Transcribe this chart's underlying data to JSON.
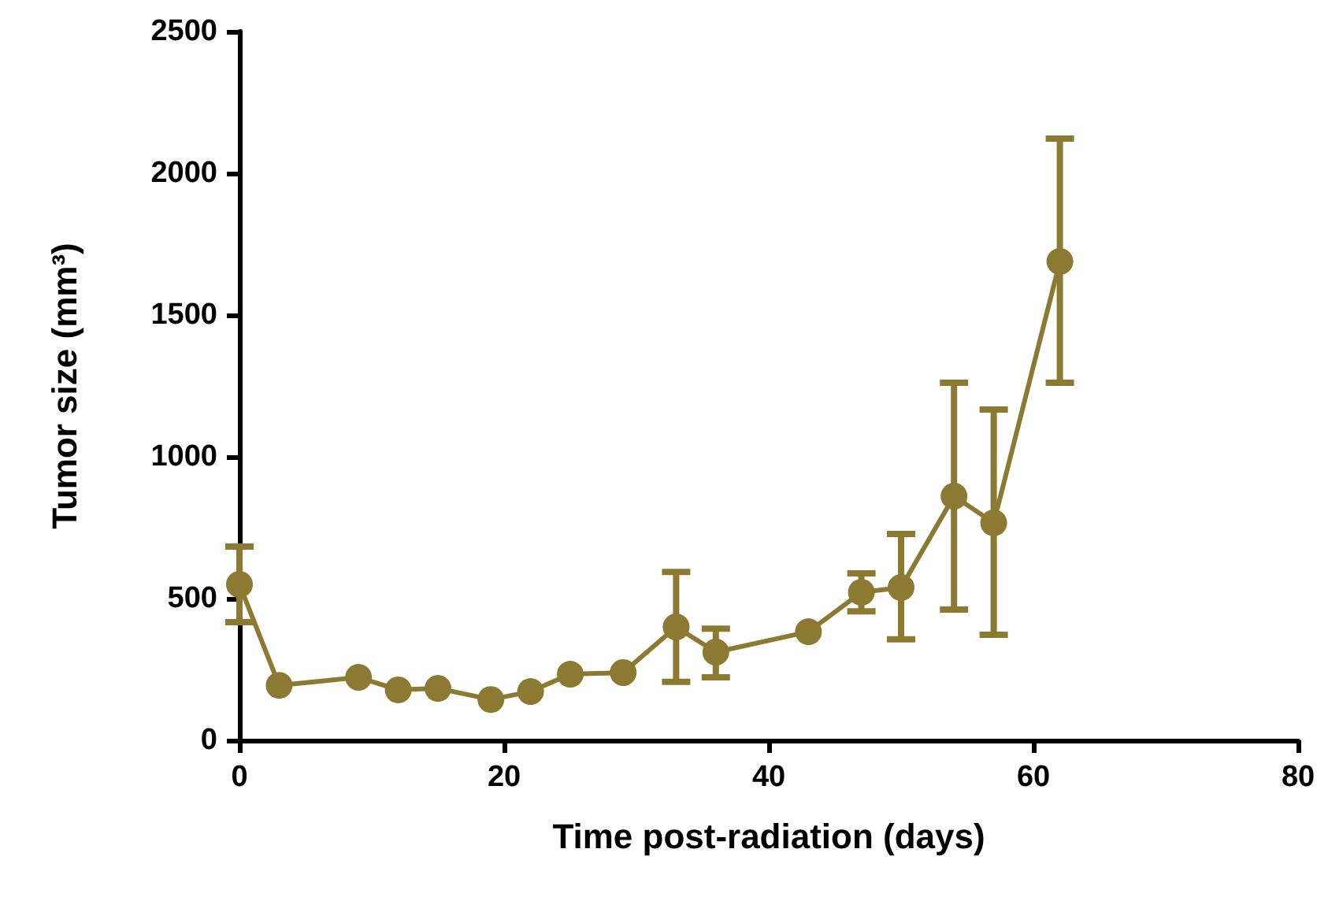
{
  "chart_data": {
    "type": "line",
    "xlabel": "Time post-radiation (days)",
    "ylabel": "Tumor size (mm³)",
    "x": [
      0,
      3,
      9,
      12,
      15,
      19,
      22,
      25,
      29,
      33,
      36,
      43,
      47,
      50,
      54,
      57,
      62
    ],
    "series": [
      {
        "color": "#8c7a32",
        "values": [
          550,
          194,
          222,
          178,
          183,
          144,
          172,
          233,
          239,
          400,
          311,
          383,
          522,
          539,
          861,
          767,
          1689
        ],
        "errors": [
          [
            417,
            683
          ],
          null,
          null,
          null,
          null,
          null,
          null,
          null,
          null,
          [
            206,
            594
          ],
          [
            222,
            394
          ],
          null,
          [
            455,
            589
          ],
          [
            356,
            728
          ],
          [
            461,
            1261
          ],
          [
            372,
            1167
          ],
          [
            1261,
            2122
          ]
        ]
      }
    ],
    "xlim": [
      0,
      80
    ],
    "xticks": [
      0,
      20,
      40,
      60,
      80
    ],
    "ylim": [
      0,
      2500
    ],
    "yticks": [
      0,
      500,
      1000,
      1500,
      2000,
      2500
    ],
    "marker": "circle",
    "line_style": "solid",
    "grid": false
  }
}
